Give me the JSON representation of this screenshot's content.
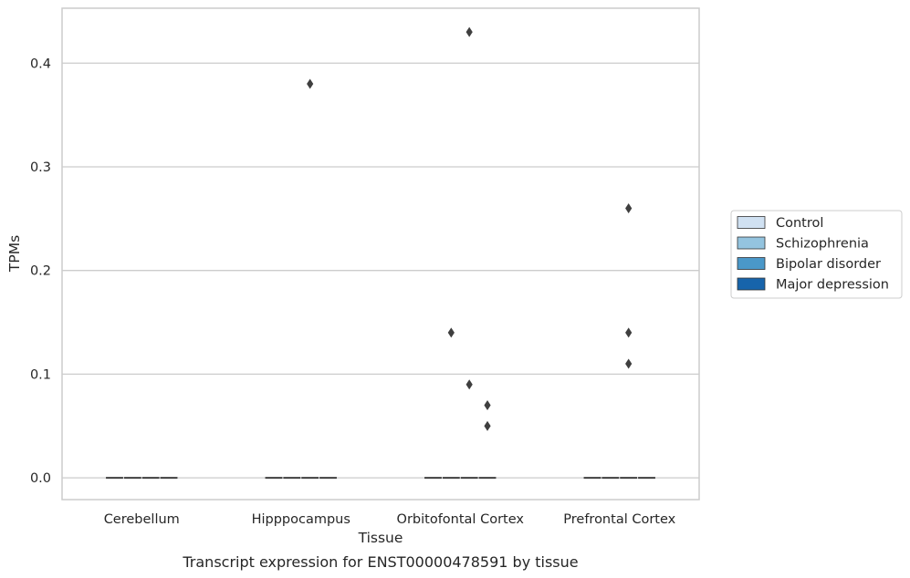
{
  "chart_data": {
    "type": "box",
    "title": "",
    "caption": "Transcript expression for ENST00000478591 by tissue",
    "xlabel": "Tissue",
    "ylabel": "TPMs",
    "ylim": [
      -0.021,
      0.453
    ],
    "yticks": [
      0.0,
      0.1,
      0.2,
      0.3,
      0.4
    ],
    "ytick_labels": [
      "0.0",
      "0.1",
      "0.2",
      "0.3",
      "0.4"
    ],
    "grid": "horizontal",
    "legend_position": "right",
    "categories": [
      "Cerebellum",
      "Hipppocampus",
      "Orbitofontal Cortex",
      "Prefrontal Cortex"
    ],
    "series": [
      {
        "name": "Control",
        "color": "#d0e1f2"
      },
      {
        "name": "Schizophrenia",
        "color": "#94c4df"
      },
      {
        "name": "Bipolar disorder",
        "color": "#4a98c9"
      },
      {
        "name": "Major depression",
        "color": "#1764ab"
      }
    ],
    "medians": [
      [
        0.0,
        0.0,
        0.0,
        0.0
      ],
      [
        0.0,
        0.0,
        0.0,
        0.0
      ],
      [
        0.0,
        0.0,
        0.0,
        0.0
      ],
      [
        0.0,
        0.0,
        0.0,
        0.0
      ]
    ],
    "outliers": [
      {
        "category": "Hipppocampus",
        "series": "Bipolar disorder",
        "value": 0.38
      },
      {
        "category": "Orbitofontal Cortex",
        "series": "Schizophrenia",
        "value": 0.14
      },
      {
        "category": "Orbitofontal Cortex",
        "series": "Bipolar disorder",
        "value": 0.43
      },
      {
        "category": "Orbitofontal Cortex",
        "series": "Bipolar disorder",
        "value": 0.09
      },
      {
        "category": "Orbitofontal Cortex",
        "series": "Major depression",
        "value": 0.07
      },
      {
        "category": "Orbitofontal Cortex",
        "series": "Major depression",
        "value": 0.05
      },
      {
        "category": "Prefrontal Cortex",
        "series": "Bipolar disorder",
        "value": 0.26
      },
      {
        "category": "Prefrontal Cortex",
        "series": "Bipolar disorder",
        "value": 0.14
      },
      {
        "category": "Prefrontal Cortex",
        "series": "Bipolar disorder",
        "value": 0.11
      }
    ]
  }
}
